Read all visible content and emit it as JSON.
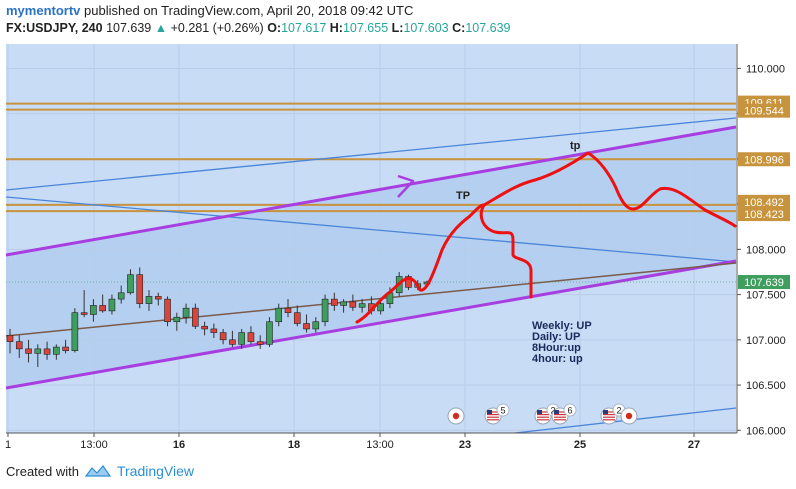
{
  "header": {
    "user": "mymentortv",
    "published_text": "published on TradingView.com, April 20, 2018 09:42 UTC",
    "symbol": "FX:USDJPY, 240",
    "last": "107.639",
    "arrow": "▲",
    "change": "+0.281 (+0.26%)",
    "o_label": "O:",
    "o_value": "107.617",
    "h_label": "H:",
    "h_value": "107.655",
    "l_label": "L:",
    "l_value": "107.603",
    "c_label": "C:",
    "c_value": "107.639"
  },
  "footer": {
    "created_with": "Created with",
    "brand": "TradingView"
  },
  "colors": {
    "plot_bg": "#c8dcf6",
    "channel_fill": "#b0ccf0",
    "bull": "#3f9e5e",
    "bear": "#d9453b",
    "level": "#c8933d",
    "purple": "#a83ee0",
    "blue_line": "#4a86d8",
    "trend_brown": "#7a5a48",
    "drawing_red": "#ee1111"
  },
  "chart_data": {
    "type": "candlestick",
    "symbol": "FX:USDJPY",
    "timeframe": "240",
    "x_ticks": [
      "1",
      "13:00",
      "16",
      "18",
      "13:00",
      "23",
      "25",
      "27"
    ],
    "y_ticks": [
      "110.000",
      "109.500",
      "109.000",
      "108.500",
      "108.000",
      "107.500",
      "107.000",
      "106.500",
      "106.000"
    ],
    "ylim": [
      105.97,
      110.27
    ],
    "horizontal_levels": [
      {
        "value": 109.611,
        "label": "109.611"
      },
      {
        "value": 109.544,
        "label": "109.544"
      },
      {
        "value": 108.996,
        "label": "108.996"
      },
      {
        "value": 108.492,
        "label": "108.492"
      },
      {
        "value": 108.423,
        "label": "108.423"
      }
    ],
    "last_price_label": "107.639",
    "annotations": [
      "tp",
      "TP",
      "Weekly: UP",
      "Daily: UP",
      "8Hour:up",
      "4hour: up"
    ],
    "event_badges": [
      "5",
      "2",
      "6",
      "2"
    ],
    "candles": [
      {
        "o": 107.05,
        "h": 107.12,
        "l": 106.85,
        "c": 106.98
      },
      {
        "o": 106.98,
        "h": 107.05,
        "l": 106.8,
        "c": 106.9
      },
      {
        "o": 106.9,
        "h": 107.0,
        "l": 106.75,
        "c": 106.85
      },
      {
        "o": 106.85,
        "h": 106.95,
        "l": 106.7,
        "c": 106.9
      },
      {
        "o": 106.9,
        "h": 106.98,
        "l": 106.78,
        "c": 106.84
      },
      {
        "o": 106.84,
        "h": 106.95,
        "l": 106.78,
        "c": 106.92
      },
      {
        "o": 106.92,
        "h": 107.0,
        "l": 106.85,
        "c": 106.88
      },
      {
        "o": 106.88,
        "h": 107.35,
        "l": 106.86,
        "c": 107.3
      },
      {
        "o": 107.3,
        "h": 107.55,
        "l": 107.25,
        "c": 107.28
      },
      {
        "o": 107.28,
        "h": 107.45,
        "l": 107.2,
        "c": 107.38
      },
      {
        "o": 107.38,
        "h": 107.5,
        "l": 107.3,
        "c": 107.32
      },
      {
        "o": 107.32,
        "h": 107.5,
        "l": 107.28,
        "c": 107.45
      },
      {
        "o": 107.45,
        "h": 107.6,
        "l": 107.4,
        "c": 107.52
      },
      {
        "o": 107.52,
        "h": 107.78,
        "l": 107.5,
        "c": 107.72
      },
      {
        "o": 107.72,
        "h": 107.8,
        "l": 107.35,
        "c": 107.4
      },
      {
        "o": 107.4,
        "h": 107.55,
        "l": 107.32,
        "c": 107.48
      },
      {
        "o": 107.48,
        "h": 107.52,
        "l": 107.38,
        "c": 107.45
      },
      {
        "o": 107.45,
        "h": 107.48,
        "l": 107.15,
        "c": 107.2
      },
      {
        "o": 107.2,
        "h": 107.3,
        "l": 107.1,
        "c": 107.25
      },
      {
        "o": 107.25,
        "h": 107.4,
        "l": 107.18,
        "c": 107.35
      },
      {
        "o": 107.35,
        "h": 107.4,
        "l": 107.12,
        "c": 107.15
      },
      {
        "o": 107.15,
        "h": 107.2,
        "l": 107.05,
        "c": 107.12
      },
      {
        "o": 107.12,
        "h": 107.18,
        "l": 107.02,
        "c": 107.08
      },
      {
        "o": 107.08,
        "h": 107.12,
        "l": 106.95,
        "c": 107.0
      },
      {
        "o": 107.0,
        "h": 107.1,
        "l": 106.92,
        "c": 106.95
      },
      {
        "o": 106.95,
        "h": 107.12,
        "l": 106.9,
        "c": 107.08
      },
      {
        "o": 107.08,
        "h": 107.15,
        "l": 106.95,
        "c": 106.98
      },
      {
        "o": 106.98,
        "h": 107.05,
        "l": 106.9,
        "c": 106.95
      },
      {
        "o": 106.95,
        "h": 107.25,
        "l": 106.92,
        "c": 107.2
      },
      {
        "o": 107.2,
        "h": 107.4,
        "l": 107.15,
        "c": 107.35
      },
      {
        "o": 107.35,
        "h": 107.45,
        "l": 107.25,
        "c": 107.3
      },
      {
        "o": 107.3,
        "h": 107.38,
        "l": 107.15,
        "c": 107.18
      },
      {
        "o": 107.18,
        "h": 107.28,
        "l": 107.08,
        "c": 107.12
      },
      {
        "o": 107.12,
        "h": 107.25,
        "l": 107.08,
        "c": 107.2
      },
      {
        "o": 107.2,
        "h": 107.5,
        "l": 107.15,
        "c": 107.45
      },
      {
        "o": 107.45,
        "h": 107.52,
        "l": 107.32,
        "c": 107.38
      },
      {
        "o": 107.38,
        "h": 107.45,
        "l": 107.3,
        "c": 107.42
      },
      {
        "o": 107.42,
        "h": 107.5,
        "l": 107.32,
        "c": 107.36
      },
      {
        "o": 107.36,
        "h": 107.45,
        "l": 107.3,
        "c": 107.4
      },
      {
        "o": 107.4,
        "h": 107.48,
        "l": 107.28,
        "c": 107.32
      },
      {
        "o": 107.32,
        "h": 107.45,
        "l": 107.28,
        "c": 107.4
      },
      {
        "o": 107.4,
        "h": 107.58,
        "l": 107.35,
        "c": 107.52
      },
      {
        "o": 107.52,
        "h": 107.75,
        "l": 107.48,
        "c": 107.7
      },
      {
        "o": 107.7,
        "h": 107.72,
        "l": 107.55,
        "c": 107.58
      },
      {
        "o": 107.58,
        "h": 107.66,
        "l": 107.55,
        "c": 107.62
      },
      {
        "o": 107.617,
        "h": 107.655,
        "l": 107.603,
        "c": 107.639
      }
    ]
  }
}
